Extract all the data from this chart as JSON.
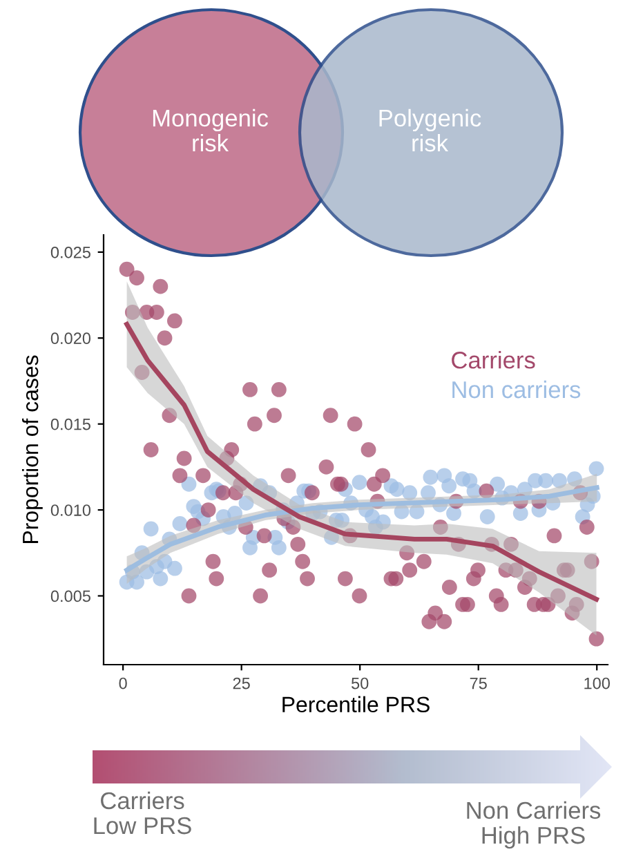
{
  "chart_data": {
    "type": "scatter",
    "xlabel": "Percentile PRS",
    "ylabel": "Proportion of cases",
    "xlim": [
      -4.1,
      102.3
    ],
    "ylim": [
      0.001,
      0.026
    ],
    "xticks": [
      0,
      25,
      50,
      75,
      100
    ],
    "yticks": [
      {
        "value": 0.005,
        "label": "0.005"
      },
      {
        "value": 0.01,
        "label": "0.010"
      },
      {
        "value": 0.015,
        "label": "0.015"
      },
      {
        "value": 0.02,
        "label": "0.020"
      },
      {
        "value": 0.025,
        "label": "0.025"
      }
    ],
    "marker": "circle",
    "line_style": "solid",
    "legend": "top right",
    "annotations": [
      "Monogenic\nrisk",
      "Polygenic\nrisk",
      "Carriers\nLow PRS",
      "Non Carriers\nHigh PRS"
    ],
    "series": [
      {
        "name": "Non carriers",
        "color": "#9dbde3",
        "x": [
          0.8,
          2.9,
          5.0,
          2.0,
          4.0,
          7.1,
          8.8,
          7.9,
          10.9,
          5.9,
          9.8,
          12.0,
          13.9,
          14.9,
          15.8,
          16.9,
          18.7,
          19.7,
          20.2,
          21.2,
          22.4,
          23.6,
          26.0,
          29.0,
          30.9,
          27.5,
          26.8,
          32.1,
          32.9,
          33.8,
          34.8,
          36.7,
          38.2,
          39.2,
          40.1,
          41.6,
          44.0,
          45.0,
          46.2,
          46.9,
          48.1,
          49.9,
          51.3,
          52.6,
          53.3,
          54.9,
          56.6,
          57.8,
          58.8,
          60.5,
          62.0,
          64.4,
          66.9,
          64.9,
          67.8,
          68.8,
          69.8,
          71.7,
          73.2,
          74.1,
          76.9,
          79.0,
          80.0,
          81.9,
          83.9,
          84.8,
          87.0,
          87.8,
          89.2,
          90.7,
          92.1,
          95.3,
          97.0,
          98.0,
          99.2,
          99.9
        ],
        "values": [
          0.0058,
          0.0058,
          0.0064,
          0.0064,
          0.0075,
          0.0067,
          0.007,
          0.006,
          0.0066,
          0.0089,
          0.0083,
          0.0092,
          0.0115,
          0.0102,
          0.0099,
          0.0095,
          0.011,
          0.0112,
          0.0111,
          0.0096,
          0.009,
          0.0098,
          0.0104,
          0.0114,
          0.011,
          0.0084,
          0.0078,
          0.0084,
          0.0078,
          0.01,
          0.0093,
          0.0104,
          0.0111,
          0.0111,
          0.0098,
          0.0099,
          0.0084,
          0.0094,
          0.0094,
          0.0112,
          0.0104,
          0.0116,
          0.01,
          0.0096,
          0.009,
          0.0093,
          0.0114,
          0.0112,
          0.0099,
          0.011,
          0.0099,
          0.011,
          0.0103,
          0.0119,
          0.012,
          0.0114,
          0.0098,
          0.0118,
          0.0117,
          0.0111,
          0.0096,
          0.0115,
          0.0107,
          0.011,
          0.0098,
          0.0112,
          0.0117,
          0.01,
          0.0117,
          0.0104,
          0.0117,
          0.0118,
          0.0096,
          0.0103,
          0.0108,
          0.0124
        ]
      },
      {
        "name": "Carriers",
        "color": "#a3486a",
        "x": [
          0.8,
          2.9,
          7.9,
          2.0,
          5.0,
          7.1,
          10.9,
          8.8,
          4.0,
          9.8,
          5.9,
          12.9,
          12.0,
          16.9,
          18.0,
          14.9,
          19.0,
          19.7,
          13.9,
          26.8,
          32.9,
          31.9,
          27.8,
          43.8,
          48.9,
          51.8,
          22.9,
          21.9,
          34.9,
          42.9,
          54.8,
          45.3,
          46.0,
          53.0,
          24.8,
          21.1,
          39.9,
          53.7,
          23.8,
          34.0,
          35.9,
          25.9,
          29.8,
          36.9,
          47.9,
          37.9,
          30.9,
          38.9,
          46.9,
          56.6,
          57.6,
          29.0,
          49.9,
          59.9,
          60.5,
          76.7,
          83.9,
          87.8,
          96.5,
          70.3,
          67.0,
          70.8,
          77.8,
          81.9,
          91.0,
          97.9,
          98.9,
          63.5,
          74.9,
          80.8,
          82.9,
          74.0,
          85.8,
          93.1,
          93.8,
          68.9,
          84.8,
          78.8,
          79.8,
          71.7,
          72.7,
          86.8,
          88.7,
          89.7,
          91.8,
          95.7,
          94.8,
          65.9,
          64.6,
          67.8,
          99.9
        ],
        "values": [
          0.024,
          0.0235,
          0.023,
          0.0215,
          0.0215,
          0.0215,
          0.021,
          0.02,
          0.018,
          0.0155,
          0.0135,
          0.013,
          0.012,
          0.012,
          0.01,
          0.0091,
          0.007,
          0.006,
          0.005,
          0.017,
          0.017,
          0.0155,
          0.015,
          0.0155,
          0.015,
          0.0135,
          0.0135,
          0.013,
          0.012,
          0.0125,
          0.012,
          0.0115,
          0.0115,
          0.0115,
          0.0115,
          0.011,
          0.011,
          0.0105,
          0.011,
          0.0095,
          0.009,
          0.009,
          0.0085,
          0.008,
          0.0085,
          0.007,
          0.0065,
          0.006,
          0.006,
          0.006,
          0.006,
          0.005,
          0.005,
          0.0075,
          0.0065,
          0.0111,
          0.0105,
          0.0105,
          0.011,
          0.0105,
          0.009,
          0.008,
          0.008,
          0.008,
          0.0085,
          0.009,
          0.007,
          0.007,
          0.0065,
          0.0065,
          0.0065,
          0.006,
          0.006,
          0.0065,
          0.0065,
          0.0055,
          0.0055,
          0.005,
          0.0045,
          0.0045,
          0.0045,
          0.0045,
          0.0045,
          0.0045,
          0.005,
          0.0045,
          0.004,
          0.004,
          0.0035,
          0.0035,
          0.0025
        ]
      },
      {
        "type": "line",
        "marker": "none",
        "color": "#9dbde0",
        "x": [
          0.8,
          5,
          10,
          20,
          30,
          40,
          50,
          60,
          70,
          80,
          90,
          100
        ],
        "values": [
          0.0065,
          0.0072,
          0.008,
          0.009,
          0.0097,
          0.0101,
          0.0103,
          0.0104,
          0.0105,
          0.0106,
          0.0108,
          0.0113
        ],
        "lower": [
          0.0057,
          0.0066,
          0.0075,
          0.0086,
          0.0094,
          0.0098,
          0.01,
          0.0101,
          0.0102,
          0.0103,
          0.0104,
          0.0105
        ],
        "upper": [
          0.0073,
          0.0078,
          0.0085,
          0.0094,
          0.01,
          0.0104,
          0.0106,
          0.0107,
          0.0108,
          0.0109,
          0.0112,
          0.0121
        ]
      },
      {
        "type": "line",
        "marker": "none",
        "color": "#a5455f",
        "x": [
          0.8,
          5.2,
          12.9,
          17.8,
          27.5,
          37.2,
          46.9,
          61.5,
          68.3,
          78,
          87.8,
          99.9
        ],
        "values": [
          0.0208,
          0.0187,
          0.0161,
          0.0134,
          0.0112,
          0.0096,
          0.0086,
          0.0083,
          0.0083,
          0.0079,
          0.0064,
          0.0048
        ],
        "lower": [
          0.0183,
          0.0168,
          0.015,
          0.0125,
          0.0104,
          0.0089,
          0.0079,
          0.0075,
          0.0074,
          0.0069,
          0.0052,
          0.0027
        ],
        "upper": [
          0.0233,
          0.0206,
          0.0172,
          0.0143,
          0.012,
          0.0103,
          0.0093,
          0.0091,
          0.0092,
          0.0089,
          0.0076,
          0.0075
        ]
      }
    ]
  }
}
